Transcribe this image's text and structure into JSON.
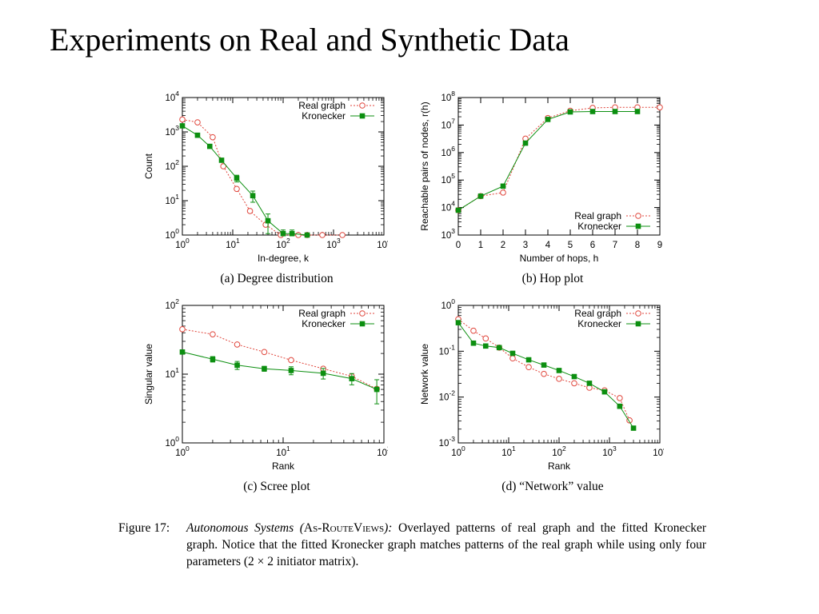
{
  "slide": {
    "title": "Experiments on Real and Synthetic Data"
  },
  "colors": {
    "real": "#e0463c",
    "kron": "#0c8f10"
  },
  "chart_data": [
    {
      "id": "a",
      "type": "line",
      "subtitle": "(a) Degree distribution",
      "xlabel": "In-degree, k",
      "ylabel": "Count",
      "xscale": "log",
      "yscale": "log",
      "xlim": [
        1,
        10000
      ],
      "ylim": [
        1,
        10000
      ],
      "xticks": [
        {
          "v": 1,
          "e": "0"
        },
        {
          "v": 10,
          "e": "1"
        },
        {
          "v": 100,
          "e": "2"
        },
        {
          "v": 1000,
          "e": "3"
        },
        {
          "v": 10000,
          "e": "4"
        }
      ],
      "yticks": [
        {
          "v": 1,
          "e": "0"
        },
        {
          "v": 10,
          "e": "1"
        },
        {
          "v": 100,
          "e": "2"
        },
        {
          "v": 1000,
          "e": "3"
        },
        {
          "v": 10000,
          "e": "4"
        }
      ],
      "legend_position": "top-right",
      "series": [
        {
          "name": "Real graph",
          "key": "real",
          "marker": "circle",
          "dashed": true,
          "x": [
            1,
            2,
            4,
            6.5,
            12,
            22,
            45,
            90,
            200,
            300,
            600,
            1500
          ],
          "y": [
            2300,
            1900,
            700,
            100,
            22,
            5,
            2,
            1,
            1,
            1,
            1,
            1
          ]
        },
        {
          "name": "Kronecker",
          "key": "kron",
          "marker": "square",
          "dashed": false,
          "x": [
            1,
            2,
            3.5,
            6,
            12,
            25,
            50,
            100,
            150,
            300
          ],
          "y": [
            1500,
            800,
            380,
            150,
            45,
            14,
            2.6,
            1.1,
            1.1,
            1
          ],
          "err": [
            0,
            0,
            0,
            0,
            10,
            5,
            1.5,
            0.3,
            0.3,
            0
          ]
        }
      ]
    },
    {
      "id": "b",
      "type": "line",
      "subtitle": "(b) Hop plot",
      "xlabel": "Number of hops, h",
      "ylabel": "Reachable pairs of nodes, r(h)",
      "xscale": "linear",
      "yscale": "log",
      "xlim": [
        0,
        9
      ],
      "ylim": [
        1000,
        100000000
      ],
      "xticks": [
        {
          "v": 0,
          "t": "0"
        },
        {
          "v": 1,
          "t": "1"
        },
        {
          "v": 2,
          "t": "2"
        },
        {
          "v": 3,
          "t": "3"
        },
        {
          "v": 4,
          "t": "4"
        },
        {
          "v": 5,
          "t": "5"
        },
        {
          "v": 6,
          "t": "6"
        },
        {
          "v": 7,
          "t": "7"
        },
        {
          "v": 8,
          "t": "8"
        },
        {
          "v": 9,
          "t": "9"
        }
      ],
      "yticks": [
        {
          "v": 1000,
          "e": "3"
        },
        {
          "v": 10000,
          "e": "4"
        },
        {
          "v": 100000,
          "e": "5"
        },
        {
          "v": 1000000,
          "e": "6"
        },
        {
          "v": 10000000,
          "e": "7"
        },
        {
          "v": 100000000,
          "e": "8"
        }
      ],
      "legend_position": "bottom-right",
      "series": [
        {
          "name": "Real graph",
          "key": "real",
          "marker": "circle",
          "dashed": true,
          "x": [
            0,
            1,
            2,
            3,
            4,
            5,
            6,
            7,
            8,
            9
          ],
          "y": [
            8000,
            26000,
            35000,
            3200000,
            18000000,
            33000000,
            42000000,
            44000000,
            44000000,
            44000000
          ]
        },
        {
          "name": "Kronecker",
          "key": "kron",
          "marker": "square",
          "dashed": false,
          "x": [
            0,
            1,
            2,
            3,
            4,
            5,
            6,
            7,
            8
          ],
          "y": [
            8000,
            26000,
            60000,
            2200000,
            16000000,
            30000000,
            31000000,
            31000000,
            31000000
          ]
        }
      ]
    },
    {
      "id": "c",
      "type": "line",
      "subtitle": "(c) Scree plot",
      "xlabel": "Rank",
      "ylabel": "Singular value",
      "xscale": "log",
      "yscale": "log",
      "xlim": [
        1,
        100
      ],
      "ylim": [
        1,
        100
      ],
      "xticks": [
        {
          "v": 1,
          "e": "0"
        },
        {
          "v": 10,
          "e": "1"
        },
        {
          "v": 100,
          "e": "2"
        }
      ],
      "yticks": [
        {
          "v": 1,
          "e": "0"
        },
        {
          "v": 10,
          "e": "1"
        },
        {
          "v": 100,
          "e": "2"
        }
      ],
      "legend_position": "top-right",
      "series": [
        {
          "name": "Real graph",
          "key": "real",
          "marker": "circle",
          "dashed": true,
          "x": [
            1,
            2,
            3.5,
            6.5,
            12,
            25,
            48,
            85
          ],
          "y": [
            45,
            38,
            27,
            21,
            16,
            12,
            9.3,
            6.1
          ]
        },
        {
          "name": "Kronecker",
          "key": "kron",
          "marker": "square",
          "dashed": false,
          "x": [
            1,
            2,
            3.5,
            6.5,
            12,
            25,
            48,
            85
          ],
          "y": [
            21,
            16.5,
            13.5,
            12,
            11.3,
            10.3,
            8.6,
            6
          ],
          "err": [
            0,
            1.5,
            1.8,
            1,
            1.5,
            1.8,
            1.6,
            2.3
          ]
        }
      ]
    },
    {
      "id": "d",
      "type": "line",
      "subtitle": "(d) “Network” value",
      "xlabel": "Rank",
      "ylabel": "Network value",
      "xscale": "log",
      "yscale": "log",
      "xlim": [
        1,
        10000
      ],
      "ylim": [
        0.001,
        1
      ],
      "xticks": [
        {
          "v": 1,
          "e": "0"
        },
        {
          "v": 10,
          "e": "1"
        },
        {
          "v": 100,
          "e": "2"
        },
        {
          "v": 1000,
          "e": "3"
        },
        {
          "v": 10000,
          "e": "4"
        }
      ],
      "yticks": [
        {
          "v": 0.001,
          "e": "-3"
        },
        {
          "v": 0.01,
          "e": "-2"
        },
        {
          "v": 0.1,
          "e": "-1"
        },
        {
          "v": 1,
          "e": "0"
        }
      ],
      "legend_position": "top-right",
      "series": [
        {
          "name": "Real graph",
          "key": "real",
          "marker": "circle",
          "dashed": true,
          "x": [
            1,
            2,
            3.5,
            6.5,
            12,
            25,
            50,
            100,
            200,
            400,
            800,
            1600,
            2500
          ],
          "y": [
            0.5,
            0.28,
            0.19,
            0.12,
            0.07,
            0.045,
            0.032,
            0.025,
            0.02,
            0.016,
            0.014,
            0.0095,
            0.0031
          ]
        },
        {
          "name": "Kronecker",
          "key": "kron",
          "marker": "square",
          "dashed": false,
          "x": [
            1,
            2,
            3.5,
            6.5,
            12,
            25,
            50,
            100,
            200,
            400,
            800,
            1600,
            3000
          ],
          "y": [
            0.42,
            0.15,
            0.13,
            0.12,
            0.09,
            0.065,
            0.05,
            0.038,
            0.028,
            0.02,
            0.013,
            0.0063,
            0.0021
          ]
        }
      ]
    }
  ],
  "caption": {
    "label": "Figure 17:",
    "title_a": "Autonomous Systems (",
    "title_sc": "As-RouteViews",
    "title_b": "):",
    "body": " Overlayed patterns of real graph and the fitted Kronecker graph. Notice that the fitted Kronecker graph matches patterns of the real graph while using only four parameters (2 × 2 initiator matrix)."
  }
}
